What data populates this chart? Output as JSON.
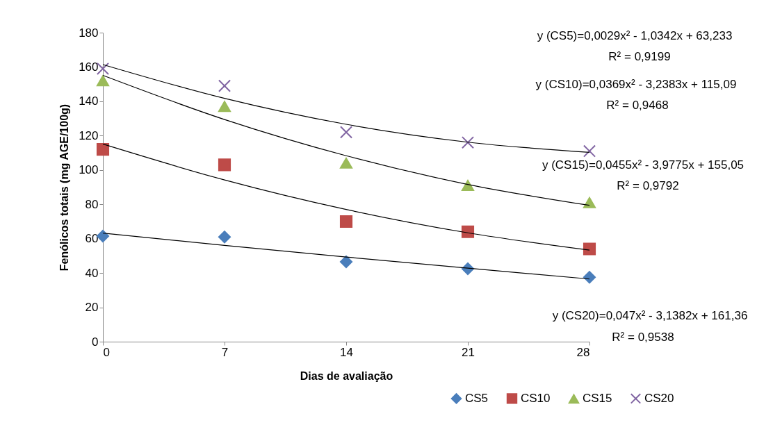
{
  "chart_data": {
    "type": "scatter",
    "xlabel": "Dias de avaliação",
    "ylabel": "Fenólicos totais (mg AGE/100g)",
    "xlim": [
      0,
      28
    ],
    "xticks": [
      0,
      7,
      14,
      21,
      28
    ],
    "ylim": [
      0,
      180
    ],
    "yticks": [
      0,
      20,
      40,
      60,
      80,
      100,
      120,
      140,
      160,
      180
    ],
    "grid": false,
    "legend": "bottom",
    "x": [
      0,
      7,
      14,
      21,
      28
    ],
    "series": [
      {
        "name": "CS5",
        "color": "#4a7ebb",
        "marker": "diamond",
        "values": [
          61.5,
          61,
          46.5,
          42.5,
          37.5
        ]
      },
      {
        "name": "CS10",
        "color": "#be4b48",
        "marker": "square",
        "values": [
          112,
          103,
          70,
          64,
          54
        ]
      },
      {
        "name": "CS15",
        "color": "#9bbb59",
        "marker": "triangle",
        "values": [
          152,
          137,
          104,
          91,
          81
        ]
      },
      {
        "name": "CS20",
        "color": "#8064a2",
        "marker": "cross",
        "values": [
          159,
          149,
          122,
          116,
          111
        ]
      },
      {
        "type": "line",
        "color": "#000000",
        "marker": "none",
        "x": [
          0,
          7,
          14,
          21,
          28
        ],
        "values": [
          63.2,
          56.1,
          49.3,
          42.8,
          36.5
        ]
      },
      {
        "type": "line",
        "color": "#000000",
        "marker": "none",
        "x": [
          0,
          7,
          14,
          21,
          28
        ],
        "values": [
          115.1,
          94.2,
          77.0,
          63.4,
          53.3
        ]
      },
      {
        "type": "line",
        "color": "#000000",
        "marker": "none",
        "x": [
          0,
          7,
          14,
          21,
          28
        ],
        "values": [
          155.1,
          129.4,
          108.3,
          91.6,
          79.4
        ]
      },
      {
        "type": "line",
        "color": "#000000",
        "marker": "none",
        "x": [
          0,
          7,
          14,
          21,
          28
        ],
        "values": [
          161.4,
          141.7,
          126.6,
          116.2,
          110.3
        ]
      }
    ],
    "annotations": [
      "y (CS5)=0,0029x² - 1,0342x + 63,233",
      "R² = 0,9199",
      "y (CS10)=0,0369x² - 3,2383x + 115,09",
      "R² = 0,9468",
      "y (CS15)=0,0455x² - 3,9775x + 155,05",
      "R² = 0,9792",
      "y (CS20)=0,047x² - 3,1382x + 161,36",
      "R² = 0,9538"
    ]
  }
}
